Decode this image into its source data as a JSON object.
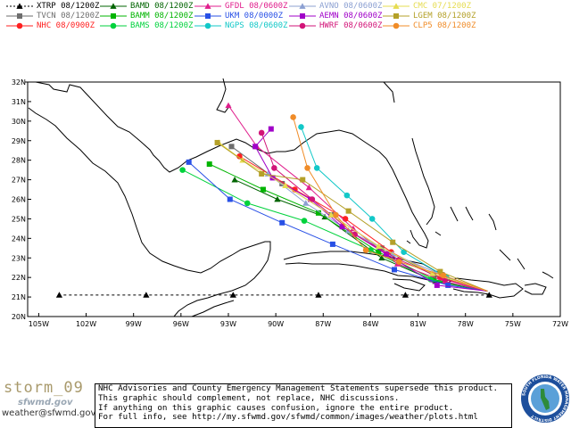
{
  "legend": [
    {
      "model": "XTRP",
      "time": "08/1200Z",
      "color": "#000000",
      "marker": "triangle"
    },
    {
      "model": "TVCN",
      "time": "08/1200Z",
      "color": "#6e6e6e",
      "marker": "square"
    },
    {
      "model": "NHC",
      "time": "08/0900Z",
      "color": "#ff2020",
      "marker": "circle"
    },
    {
      "model": "BAMD",
      "time": "08/1200Z",
      "color": "#006400",
      "marker": "triangle"
    },
    {
      "model": "BAMM",
      "time": "08/1200Z",
      "color": "#00b400",
      "marker": "square"
    },
    {
      "model": "BAMS",
      "time": "08/1200Z",
      "color": "#00d23c",
      "marker": "circle"
    },
    {
      "model": "GFDL",
      "time": "08/0600Z",
      "color": "#e01e8c",
      "marker": "triangle"
    },
    {
      "model": "UKM",
      "time": "08/0000Z",
      "color": "#2850e6",
      "marker": "square"
    },
    {
      "model": "NGPS",
      "time": "08/0600Z",
      "color": "#12c8c8",
      "marker": "circle"
    },
    {
      "model": "AVNO",
      "time": "08/0600Z",
      "color": "#8ca0d2",
      "marker": "triangle"
    },
    {
      "model": "AEMN",
      "time": "08/0600Z",
      "color": "#a000c8",
      "marker": "square"
    },
    {
      "model": "HWRF",
      "time": "08/0600Z",
      "color": "#d21478",
      "marker": "circle"
    },
    {
      "model": "CMC",
      "time": "07/1200Z",
      "color": "#e6dc50",
      "marker": "triangle"
    },
    {
      "model": "LGEM",
      "time": "08/1200Z",
      "color": "#b4a028",
      "marker": "square"
    },
    {
      "model": "CLP5",
      "time": "08/1200Z",
      "color": "#f08c28",
      "marker": "circle"
    }
  ],
  "map": {
    "lat_labels": [
      "32N",
      "31N",
      "30N",
      "29N",
      "28N",
      "27N",
      "26N",
      "25N",
      "24N",
      "23N",
      "22N",
      "21N",
      "20N"
    ],
    "lon_labels": [
      "105W",
      "102W",
      "99W",
      "96W",
      "93W",
      "90W",
      "87W",
      "84W",
      "81W",
      "78W",
      "75W",
      "72W"
    ],
    "lat_range": [
      20,
      32
    ],
    "lon_range": [
      -105.7,
      -72
    ]
  },
  "tracks": [
    {
      "model": "XTRP",
      "points": [
        [
          -76.5,
          21.1
        ],
        [
          -81.8,
          21.1
        ],
        [
          -87.3,
          21.1
        ],
        [
          -92.7,
          21.1
        ],
        [
          -98.2,
          21.1
        ],
        [
          -103.7,
          21.1
        ]
      ]
    },
    {
      "model": "TVCN",
      "points": [
        [
          -76.7,
          21.3
        ],
        [
          -80.0,
          22.1
        ],
        [
          -83.3,
          23.5
        ],
        [
          -86.5,
          25.2
        ],
        [
          -89.6,
          26.8
        ],
        [
          -92.8,
          28.7
        ]
      ]
    },
    {
      "model": "NHC",
      "points": [
        [
          -76.6,
          21.3
        ],
        [
          -79.6,
          22.0
        ],
        [
          -82.7,
          23.3
        ],
        [
          -85.6,
          25.0
        ],
        [
          -88.8,
          26.5
        ],
        [
          -92.3,
          28.2
        ]
      ]
    },
    {
      "model": "BAMD",
      "points": [
        [
          -76.6,
          21.3
        ],
        [
          -79.9,
          21.8
        ],
        [
          -83.3,
          23.0
        ],
        [
          -86.9,
          25.1
        ],
        [
          -89.9,
          26.0
        ],
        [
          -92.6,
          27.0
        ]
      ]
    },
    {
      "model": "BAMM",
      "points": [
        [
          -76.6,
          21.3
        ],
        [
          -80.0,
          21.9
        ],
        [
          -83.5,
          23.3
        ],
        [
          -87.3,
          25.3
        ],
        [
          -90.8,
          26.5
        ],
        [
          -94.2,
          27.8
        ]
      ]
    },
    {
      "model": "BAMS",
      "points": [
        [
          -76.6,
          21.3
        ],
        [
          -80.2,
          21.9
        ],
        [
          -84.0,
          23.4
        ],
        [
          -88.2,
          24.9
        ],
        [
          -91.8,
          25.8
        ],
        [
          -95.9,
          27.5
        ]
      ]
    },
    {
      "model": "GFDL",
      "points": [
        [
          -76.6,
          21.3
        ],
        [
          -79.3,
          21.8
        ],
        [
          -82.3,
          22.7
        ],
        [
          -85.1,
          24.5
        ],
        [
          -87.9,
          26.6
        ],
        [
          -91.2,
          28.7
        ],
        [
          -93.0,
          30.8
        ]
      ]
    },
    {
      "model": "UKM",
      "points": [
        [
          -76.6,
          21.3
        ],
        [
          -79.1,
          21.6
        ],
        [
          -82.5,
          22.4
        ],
        [
          -86.4,
          23.7
        ],
        [
          -89.6,
          24.8
        ],
        [
          -92.9,
          26.0
        ],
        [
          -95.5,
          27.9
        ]
      ]
    },
    {
      "model": "NGPS",
      "points": [
        [
          -76.6,
          21.3
        ],
        [
          -79.2,
          22.0
        ],
        [
          -81.9,
          23.3
        ],
        [
          -83.9,
          25.0
        ],
        [
          -85.5,
          26.2
        ],
        [
          -87.4,
          27.6
        ],
        [
          -88.4,
          29.7
        ]
      ]
    },
    {
      "model": "AVNO",
      "points": [
        [
          -76.6,
          21.3
        ],
        [
          -79.4,
          22.1
        ],
        [
          -82.6,
          23.2
        ],
        [
          -85.4,
          24.4
        ],
        [
          -88.1,
          25.8
        ],
        [
          -90.5,
          27.3
        ]
      ]
    },
    {
      "model": "AEMN",
      "points": [
        [
          -76.6,
          21.3
        ],
        [
          -79.8,
          21.6
        ],
        [
          -83.0,
          23.2
        ],
        [
          -85.8,
          24.6
        ],
        [
          -87.8,
          26.0
        ],
        [
          -90.2,
          27.1
        ],
        [
          -91.3,
          28.7
        ],
        [
          -90.3,
          29.6
        ]
      ]
    },
    {
      "model": "HWRF",
      "points": [
        [
          -76.6,
          21.3
        ],
        [
          -79.3,
          21.9
        ],
        [
          -82.2,
          22.9
        ],
        [
          -85.0,
          24.2
        ],
        [
          -87.7,
          26.0
        ],
        [
          -90.1,
          27.6
        ],
        [
          -90.9,
          29.4
        ]
      ]
    },
    {
      "model": "CMC",
      "points": [
        [
          -76.6,
          21.3
        ],
        [
          -80.1,
          22.2
        ],
        [
          -83.5,
          23.6
        ],
        [
          -86.5,
          25.2
        ],
        [
          -89.4,
          26.7
        ],
        [
          -92.1,
          28.0
        ],
        [
          -93.6,
          28.9
        ]
      ]
    },
    {
      "model": "LGEM",
      "points": [
        [
          -76.6,
          21.3
        ],
        [
          -79.6,
          22.3
        ],
        [
          -82.6,
          23.8
        ],
        [
          -85.4,
          25.4
        ],
        [
          -88.3,
          27.0
        ],
        [
          -90.9,
          27.3
        ],
        [
          -93.7,
          28.9
        ]
      ]
    },
    {
      "model": "CLP5",
      "points": [
        [
          -76.6,
          21.3
        ],
        [
          -79.4,
          22.1
        ],
        [
          -82.2,
          22.8
        ],
        [
          -84.3,
          23.4
        ],
        [
          -86.2,
          25.2
        ],
        [
          -88.0,
          27.6
        ],
        [
          -88.9,
          30.2
        ]
      ]
    }
  ],
  "footer": {
    "brand_title": "storm_09",
    "brand_logo": "sfwmd.gov",
    "brand_email": "weather@sfwmd.gov",
    "notice_lines": [
      "NHC Advisories and County Emergency Management Statements supersede this product.",
      "This graphic should complement, not replace, NHC discussions.",
      "If anything on this graphic causes confusion, ignore the entire product.",
      "For full info, see  http://my.sfwmd.gov/sfwmd/common/images/weather/plots.html"
    ],
    "seal_text": "SOUTH FLORIDA WATER MANAGEMENT DISTRICT"
  }
}
